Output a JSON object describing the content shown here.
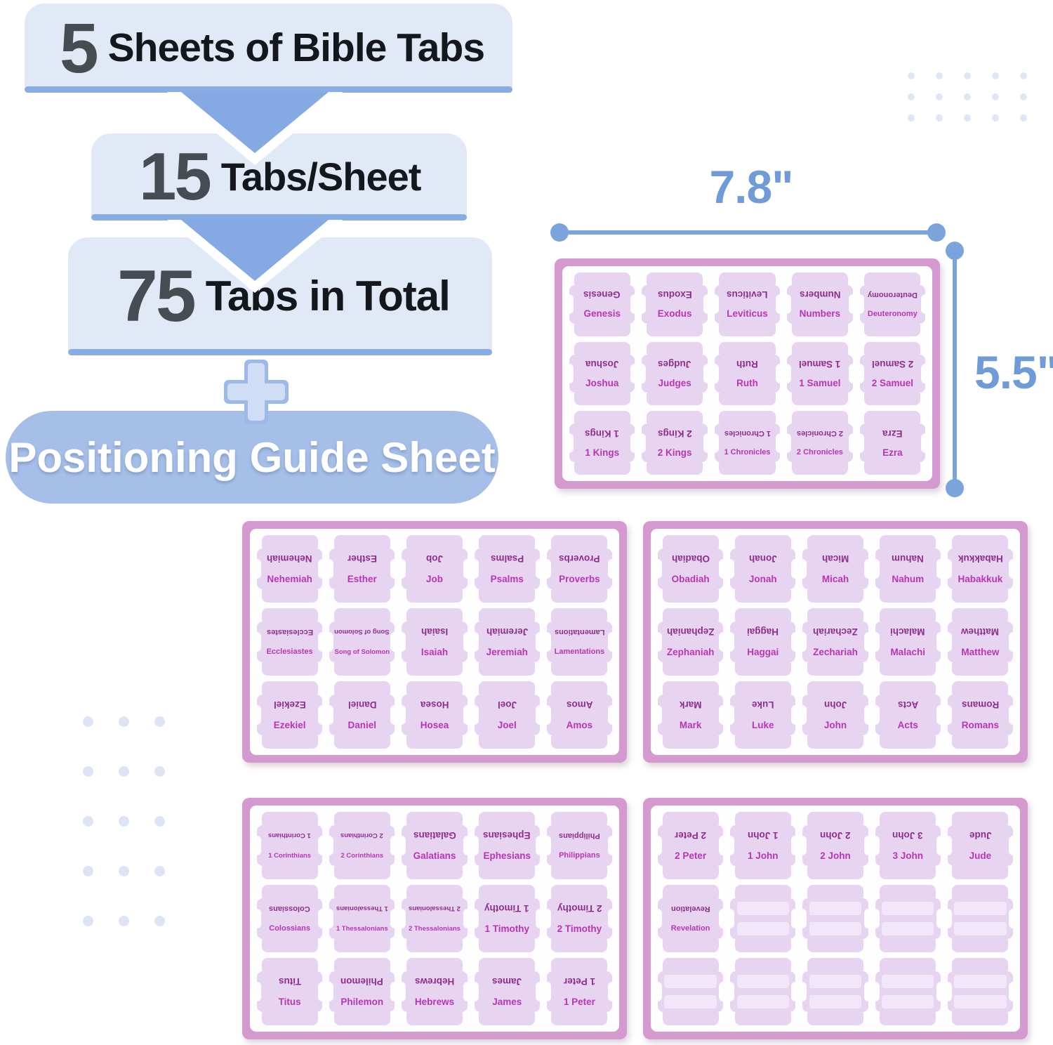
{
  "header": {
    "steps": [
      {
        "number": "5",
        "label": "Sheets of Bible Tabs"
      },
      {
        "number": "15",
        "label": "Tabs/Sheet"
      },
      {
        "number": "75",
        "label": "Tabs in Total"
      }
    ],
    "guide_label": "Positioning Guide Sheet"
  },
  "dimension_labels": {
    "width": "7.8\"",
    "height": "5.5\""
  },
  "sheets": [
    {
      "name": "sheet-1",
      "tabs": [
        [
          "Genesis",
          "Exodus",
          "Leviticus",
          "Numbers",
          "Deuteronomy"
        ],
        [
          "Joshua",
          "Judges",
          "Ruth",
          "1 Samuel",
          "2 Samuel"
        ],
        [
          "1 Kings",
          "2 Kings",
          "1 Chronicles",
          "2 Chronicles",
          "Ezra"
        ]
      ]
    },
    {
      "name": "sheet-2",
      "tabs": [
        [
          "Nehemiah",
          "Esther",
          "Job",
          "Psalms",
          "Proverbs"
        ],
        [
          "Ecclesiastes",
          "Song of Solomon",
          "Isaiah",
          "Jeremiah",
          "Lamentations"
        ],
        [
          "Ezekiel",
          "Daniel",
          "Hosea",
          "Joel",
          "Amos"
        ]
      ]
    },
    {
      "name": "sheet-3",
      "tabs": [
        [
          "Obadiah",
          "Jonah",
          "Micah",
          "Nahum",
          "Habakkuk"
        ],
        [
          "Zephaniah",
          "Haggai",
          "Zechariah",
          "Malachi",
          "Matthew"
        ],
        [
          "Mark",
          "Luke",
          "John",
          "Acts",
          "Romans"
        ]
      ]
    },
    {
      "name": "sheet-4",
      "tabs": [
        [
          "1 Corinthians",
          "2 Corinthians",
          "Galatians",
          "Ephesians",
          "Philippians"
        ],
        [
          "Colossians",
          "1 Thessalonians",
          "2 Thessalonians",
          "1 Timothy",
          "2 Timothy"
        ],
        [
          "Titus",
          "Philemon",
          "Hebrews",
          "James",
          "1 Peter"
        ]
      ]
    },
    {
      "name": "sheet-5",
      "tabs": [
        [
          "2 Peter",
          "1 John",
          "2 John",
          "3 John",
          "Jude"
        ],
        [
          "Revelation",
          "",
          "",
          "",
          ""
        ],
        [
          "",
          "",
          "",
          "",
          ""
        ]
      ]
    }
  ],
  "decor": {
    "top_right_dots": {
      "cols": 5,
      "rows": 3
    },
    "left_dots": {
      "cols": 3,
      "rows": 5
    }
  },
  "colors": {
    "banner_bg": "#e1e9f7",
    "accent_blue": "#85a9e2",
    "underline_blue": "#88ace4",
    "pill_bg": "#a5bfe9",
    "number_gray": "#474b52",
    "dimension_blue": "#6f9bd7",
    "sheet_frame_pink": "#d49ad0",
    "sheet_paper": "#fffeff",
    "tab_lavender": "#e7d4f1",
    "tab_text_magenta": "#b935b5",
    "tab_text_dark_purple": "#8e2e8c",
    "blank_write_area": "#f2e7f8",
    "dot_blue": "#dfe7f6"
  }
}
